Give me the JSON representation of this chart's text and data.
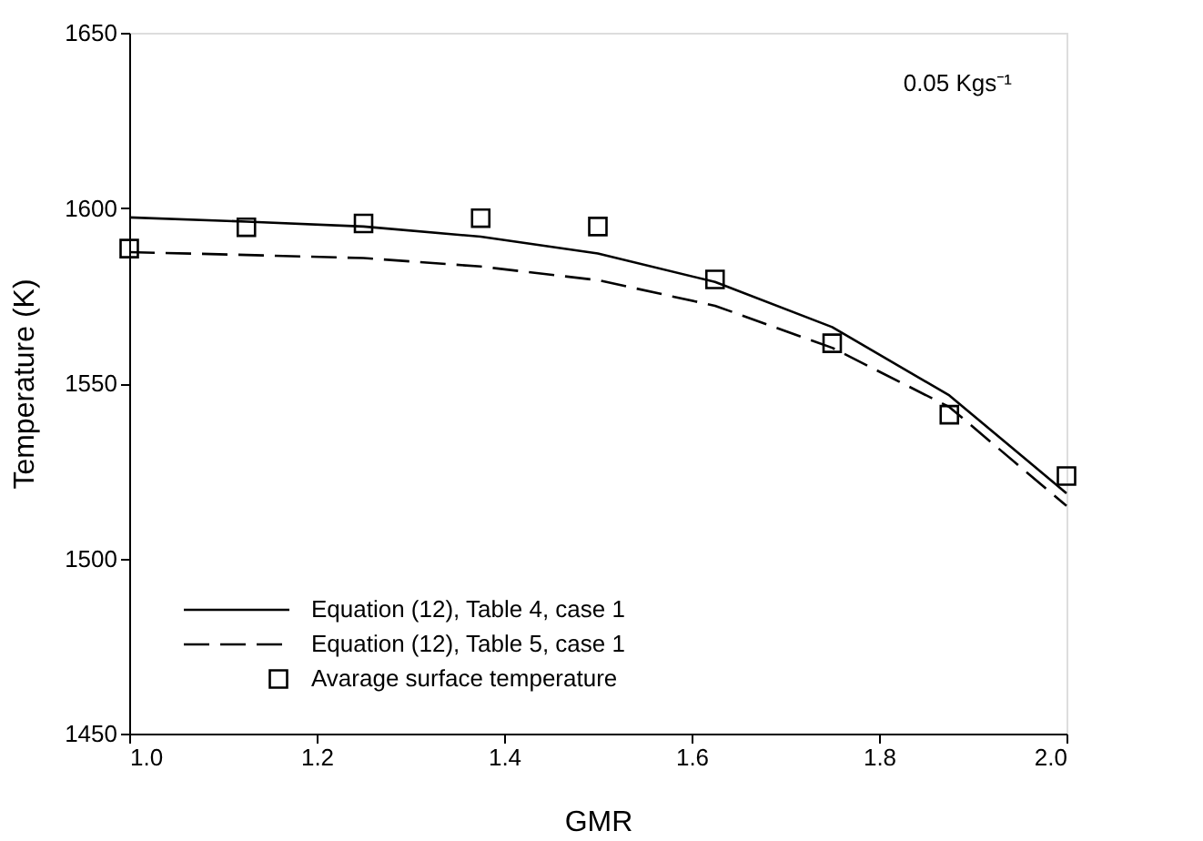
{
  "chart_data": {
    "type": "line",
    "xlabel": "GMR",
    "ylabel": "Temperature (K)",
    "x": [
      1.0,
      1.125,
      1.25,
      1.375,
      1.5,
      1.625,
      1.75,
      1.875,
      2.0
    ],
    "series": [
      {
        "name": "Equation (12), Table 4, case 1",
        "type": "line",
        "color": "#000000",
        "line_style": "solid",
        "values": [
          1597.3,
          1596.1,
          1594.7,
          1591.8,
          1587.0,
          1578.9,
          1566.0,
          1546.5,
          1518.6
        ]
      },
      {
        "name": "Equation (12), Table 5, case 1",
        "type": "line",
        "color": "#000000",
        "line_style": "dashed",
        "values": [
          1587.4,
          1586.6,
          1585.7,
          1583.3,
          1579.4,
          1572.1,
          1560.1,
          1543.2,
          1515.0
        ]
      },
      {
        "name": "Avarage surface temperature",
        "type": "scatter",
        "color": "#000000",
        "marker": "square",
        "values": [
          1588.4,
          1594.5,
          1595.6,
          1597.1,
          1594.7,
          1579.6,
          1561.4,
          1541.0,
          1523.5
        ]
      }
    ],
    "xlim": [
      1.0,
      2.0
    ],
    "xticks": [
      {
        "value": 1.0,
        "label": "1.0"
      },
      1.2,
      1.4,
      1.6,
      1.8,
      {
        "value": 2.0,
        "label": "2.0"
      }
    ],
    "ylim": [
      1450,
      1650
    ],
    "yticks": [
      1450,
      1500,
      1550,
      1600,
      1650
    ],
    "grid": false,
    "legend": "bottom left",
    "annotations": [
      "0.05 Kgs⁻¹"
    ]
  }
}
